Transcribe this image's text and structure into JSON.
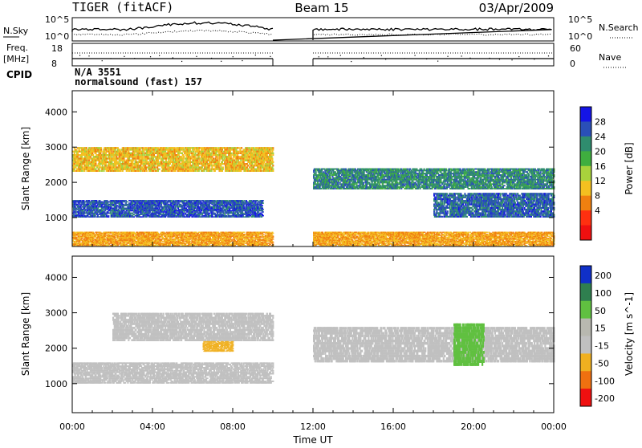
{
  "header": {
    "radar": "TIGER (fitACF)",
    "beam": "Beam 15",
    "date": "03/Apr/2009"
  },
  "params_panel": {
    "nsky_label": "N.Sky",
    "nsky_ticks": [
      "10^5",
      "10^0"
    ],
    "nsearch_label": "N.Search",
    "nsearch_ticks": [
      "10^5",
      "10^0"
    ],
    "freq_label": "Freq.",
    "freq_unit": "[MHz]",
    "freq_ticks": [
      "18",
      "8"
    ],
    "nave_label": "Nave",
    "nave_ticks": [
      "60",
      "0"
    ],
    "cpid_label": "CPID",
    "cpid_line1": "N/A 3551",
    "cpid_line2": "normalsound (fast) 157"
  },
  "chart_data": [
    {
      "type": "heatmap",
      "title": "",
      "xlabel": "Time UT",
      "ylabel": "Slant Range [km]",
      "x_ticks": [
        "00:00",
        "04:00",
        "08:00",
        "12:00",
        "16:00",
        "20:00",
        "00:00"
      ],
      "xlim_hours": [
        0,
        24
      ],
      "y_ticks": [
        1000,
        2000,
        3000,
        4000
      ],
      "ylim": [
        180,
        4600
      ],
      "colorbar": {
        "label": "Power [dB]",
        "ticks": [
          4,
          8,
          12,
          16,
          20,
          24,
          28
        ],
        "range": [
          0,
          30
        ],
        "colors": [
          "#1414e6",
          "#2a4fb8",
          "#2f8c6e",
          "#3fae3f",
          "#a8d23c",
          "#f4c020",
          "#f08010",
          "#ff3010",
          "#f01010"
        ]
      },
      "data_gap_hours": [
        10,
        12
      ],
      "regions": [
        {
          "name": "near-range ground scatter",
          "time_h": [
            0,
            24
          ],
          "range_km": [
            200,
            600
          ],
          "power_db": 10
        },
        {
          "name": "strong scatter band",
          "time_h": [
            0,
            9.5
          ],
          "range_km": [
            1000,
            1500
          ],
          "power_db": 28
        },
        {
          "name": "outer scatter band",
          "time_h": [
            0,
            10
          ],
          "range_km": [
            2300,
            3000
          ],
          "power_db": 12
        },
        {
          "name": "afternoon band",
          "time_h": [
            12,
            24
          ],
          "range_km": [
            1800,
            2400
          ],
          "power_db": 24
        },
        {
          "name": "late band",
          "time_h": [
            18,
            24
          ],
          "range_km": [
            1000,
            1700
          ],
          "power_db": 27
        }
      ]
    },
    {
      "type": "heatmap",
      "title": "",
      "xlabel": "Time UT",
      "ylabel": "Slant Range [km]",
      "x_ticks": [
        "00:00",
        "04:00",
        "08:00",
        "12:00",
        "16:00",
        "20:00",
        "00:00"
      ],
      "xlim_hours": [
        0,
        24
      ],
      "y_ticks": [
        1000,
        2000,
        3000,
        4000
      ],
      "ylim": [
        180,
        4600
      ],
      "colorbar": {
        "label": "Velocity [m s^-1]",
        "ticks": [
          "200",
          "100",
          "50",
          "15",
          "-15",
          "-50",
          "-100",
          "-200"
        ],
        "colors": [
          "#1030c8",
          "#2f7f4f",
          "#60c040",
          "#b8b8b0",
          "#c0c0c0",
          "#f0b020",
          "#f07010",
          "#f01010"
        ],
        "ground_scatter_color": "#c0c0c0"
      },
      "data_gap_hours": [
        10,
        12
      ],
      "regions": [
        {
          "name": "ground scatter band",
          "time_h": [
            0,
            10
          ],
          "range_km": [
            1000,
            1600
          ],
          "velocity": 0
        },
        {
          "name": "outer scatter",
          "time_h": [
            2,
            10
          ],
          "range_km": [
            2200,
            3000
          ],
          "velocity": 0
        },
        {
          "name": "negative velocity patch",
          "time_h": [
            6.5,
            8
          ],
          "range_km": [
            1900,
            2200
          ],
          "velocity": -50
        },
        {
          "name": "afternoon scatter",
          "time_h": [
            12,
            24
          ],
          "range_km": [
            1600,
            2600
          ],
          "velocity": 0
        },
        {
          "name": "positive velocity streak",
          "time_h": [
            19,
            20.5
          ],
          "range_km": [
            1500,
            2700
          ],
          "velocity": 50
        }
      ]
    }
  ]
}
